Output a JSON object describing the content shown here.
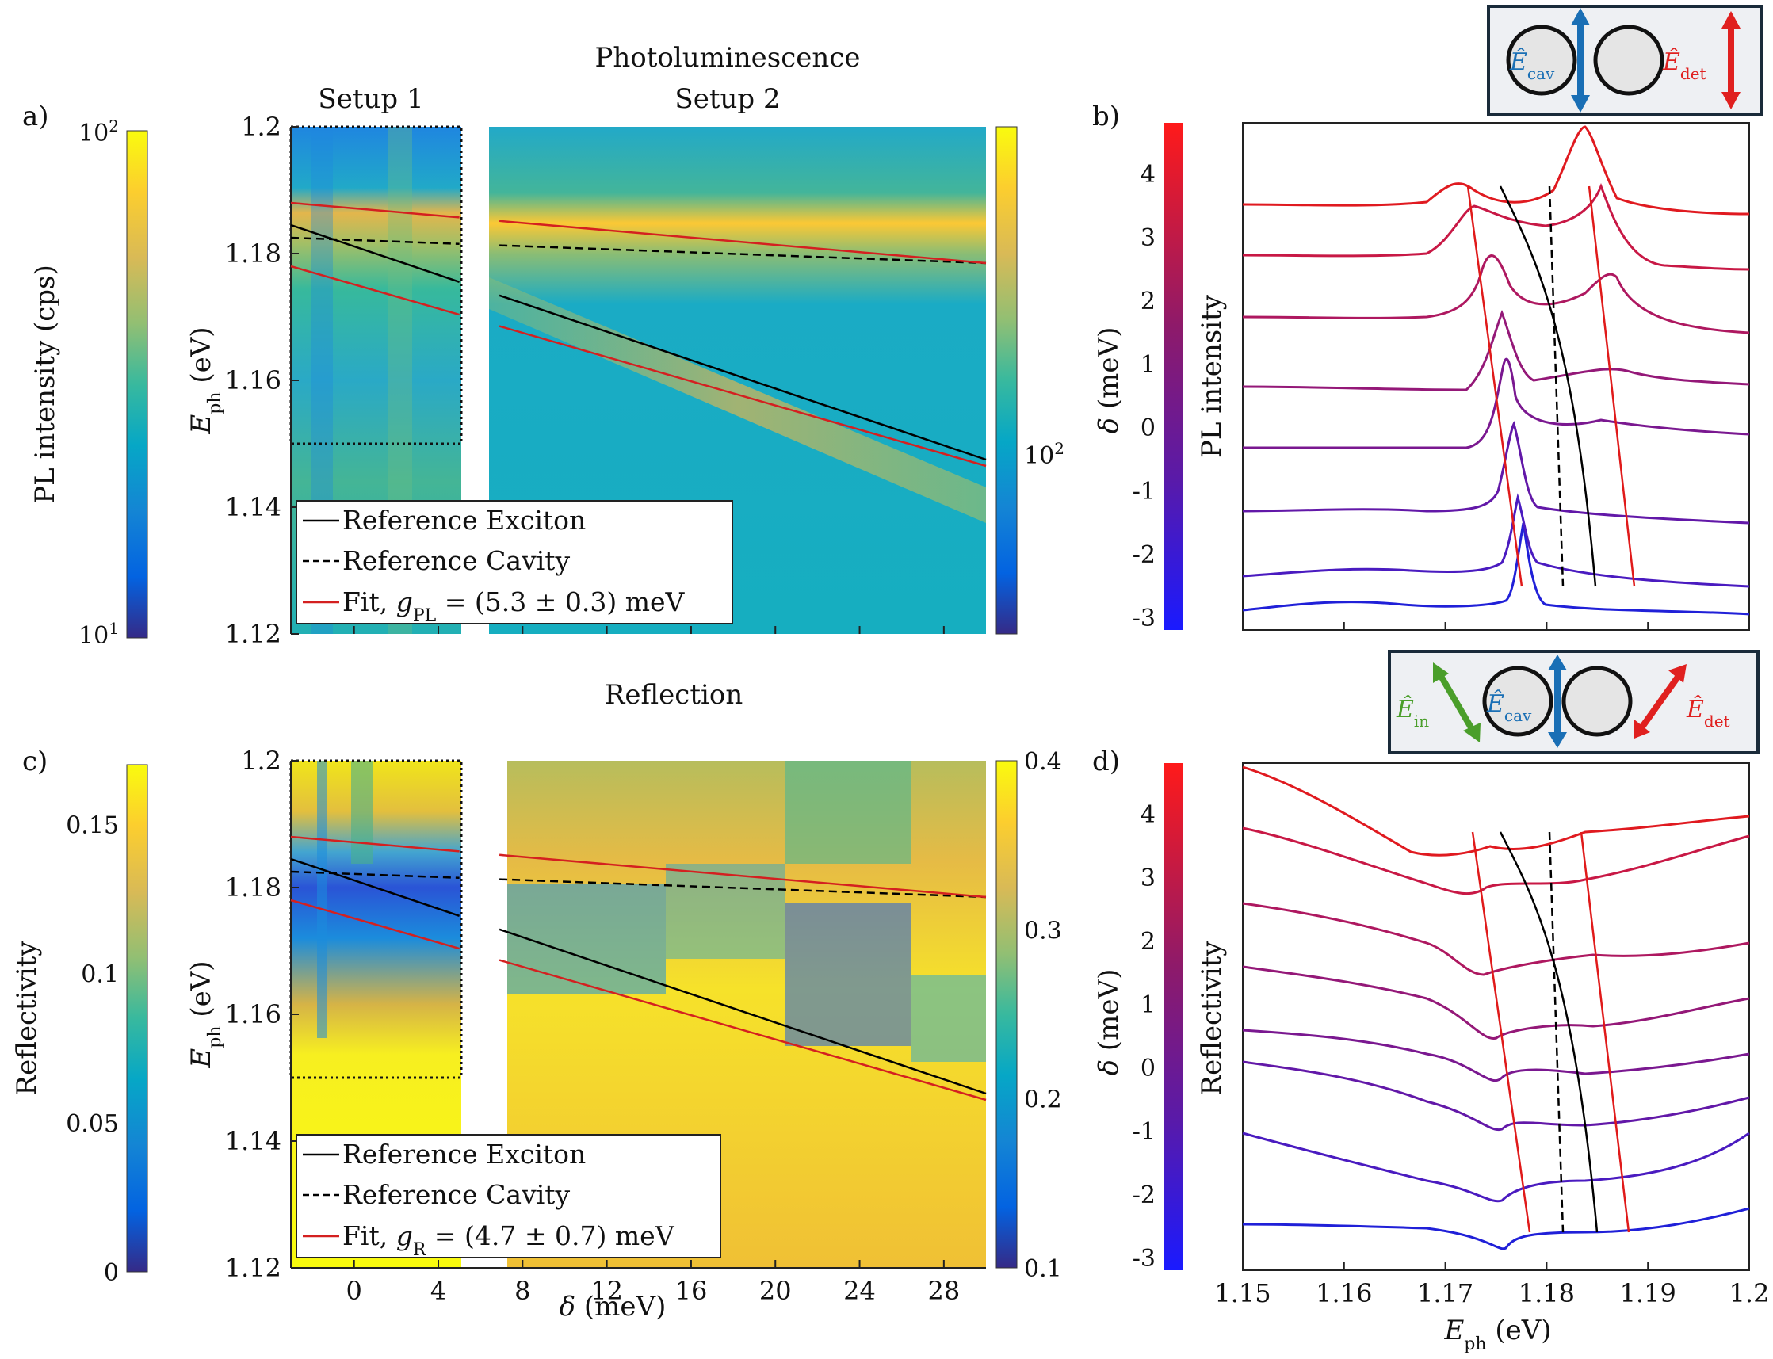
{
  "titles": {
    "pl": "Photoluminescence",
    "refl": "Reflection",
    "setup1": "Setup 1",
    "setup2": "Setup 2"
  },
  "panel_labels": {
    "a": "a)",
    "b": "b)",
    "c": "c)",
    "d": "d)"
  },
  "insets": {
    "pl": {
      "e_cav": "Ê",
      "cav_sub": "cav",
      "e_det": "Ê",
      "det_sub": "det"
    },
    "refl": {
      "e_in": "Ê",
      "in_sub": "in",
      "e_cav": "Ê",
      "cav_sub": "cav",
      "e_det": "Ê",
      "det_sub": "det"
    }
  },
  "colors": {
    "exciton": "#000000",
    "cavity": "#000000",
    "fit": "#d42020",
    "blue_arrow": "#1a6fb5",
    "red_arrow": "#e0201f",
    "green_arrow": "#4a9e2a"
  },
  "chart_data": [
    {
      "id": "a",
      "type": "heatmap",
      "title": "Photoluminescence",
      "ylabel": "E_ph (eV)",
      "yticks": [
        "1.2",
        "1.18",
        "1.16",
        "1.14",
        "1.12"
      ],
      "ylim": [
        1.12,
        1.2
      ],
      "xlim": [
        -3,
        30
      ],
      "colorbar_left": {
        "label": "PL intensity (cps)",
        "ticks": [
          "10^2",
          "10^1"
        ]
      },
      "colorbar_right": {
        "ticks": [
          "10^2"
        ]
      },
      "legend": [
        "Reference Exciton",
        "Reference Cavity",
        "Fit, g_PL = (5.3 ± 0.3) meV"
      ],
      "exciton_line": {
        "x": [
          -3,
          30
        ],
        "y": [
          1.1845,
          1.1475
        ]
      },
      "cavity_line": {
        "x": [
          -3,
          30
        ],
        "y": [
          1.1825,
          1.1785
        ]
      },
      "fit_upper": {
        "x": [
          -3,
          30
        ],
        "y": [
          1.188,
          1.1785
        ]
      },
      "fit_lower": {
        "x": [
          -3,
          30
        ],
        "y": [
          1.178,
          1.1465
        ]
      }
    },
    {
      "id": "b",
      "type": "line",
      "ylabel": "PL intensity",
      "colorbar": {
        "label": "δ (meV)",
        "ticks": [
          "4",
          "3",
          "2",
          "1",
          "0",
          "-1",
          "-2",
          "-3"
        ]
      },
      "xlim": [
        1.15,
        1.2
      ],
      "series_count": 8
    },
    {
      "id": "c",
      "type": "heatmap",
      "title": "Reflection",
      "ylabel": "E_ph (eV)",
      "xlabel": "δ (meV)",
      "xticks": [
        "0",
        "4",
        "8",
        "12",
        "16",
        "20",
        "24",
        "28"
      ],
      "yticks": [
        "1.2",
        "1.18",
        "1.16",
        "1.14",
        "1.12"
      ],
      "ylim": [
        1.12,
        1.2
      ],
      "xlim": [
        -3,
        30
      ],
      "colorbar_left": {
        "label": "Reflectivity",
        "ticks": [
          "0.15",
          "0.1",
          "0.05",
          "0"
        ]
      },
      "colorbar_right": {
        "ticks": [
          "0.4",
          "0.3",
          "0.2",
          "0.1"
        ]
      },
      "legend": [
        "Reference Exciton",
        "Reference Cavity",
        "Fit, g_R = (4.7 ± 0.7) meV"
      ]
    },
    {
      "id": "d",
      "type": "line",
      "ylabel": "Reflectivity",
      "xlabel": "E_ph (eV)",
      "xticks": [
        "1.15",
        "1.16",
        "1.17",
        "1.18",
        "1.19",
        "1.2"
      ],
      "xlim": [
        1.15,
        1.2
      ],
      "colorbar": {
        "label": "δ (meV)",
        "ticks": [
          "4",
          "3",
          "2",
          "1",
          "0",
          "-1",
          "-2",
          "-3"
        ]
      },
      "series_count": 8
    }
  ]
}
